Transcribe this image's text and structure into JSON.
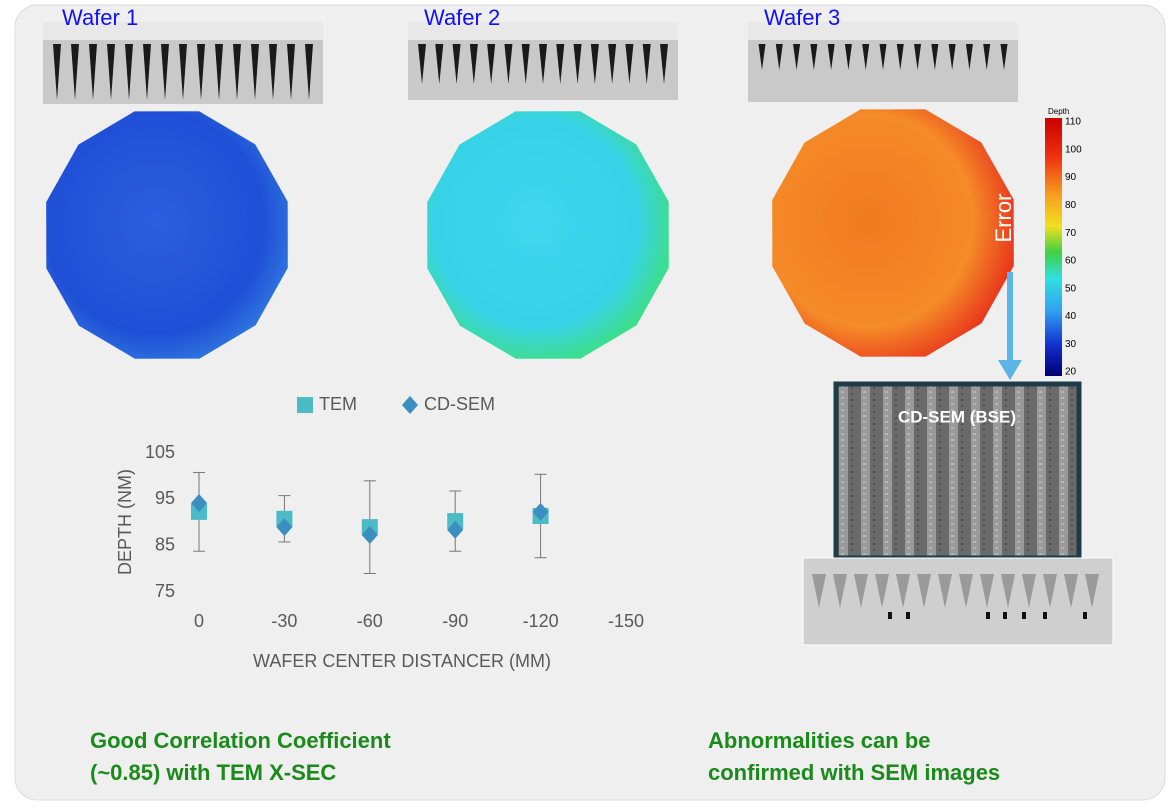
{
  "wafers": [
    "Wafer 1",
    "Wafer 2",
    "Wafer 3"
  ],
  "colorbar": {
    "title": "Depth",
    "ticks": [
      110,
      100,
      90,
      80,
      70,
      60,
      50,
      40,
      30,
      20
    ]
  },
  "error_label": "Error",
  "sem_label": "CD-SEM (BSE)",
  "captions": {
    "left": [
      "Good Correlation Coefficient",
      "(~0.85) with TEM X-SEC"
    ],
    "right": [
      "Abnormalities can be",
      "confirmed with SEM images"
    ]
  },
  "chart_data": {
    "type": "scatter",
    "x_label": "WAFER CENTER DISTANCER (MM)",
    "y_label": "DEPTH (NM)",
    "x": [
      0,
      -30,
      -60,
      -90,
      -120
    ],
    "series": [
      {
        "name": "TEM",
        "color": "#4bbcc6",
        "marker": "square",
        "values": [
          92.3,
          90.8,
          89.0,
          90.3,
          91.4
        ],
        "errors": [
          8.5,
          5,
          10,
          6.5,
          9
        ]
      },
      {
        "name": "CD-SEM",
        "color": "#3a8fc0",
        "marker": "diamond",
        "values": [
          94.2,
          89.0,
          87.3,
          88.4,
          92.3
        ]
      }
    ],
    "xlim": [
      0,
      -150
    ],
    "xticks": [
      0,
      -30,
      -60,
      -90,
      -120,
      -150
    ],
    "ylim": [
      75,
      105
    ],
    "yticks": [
      75,
      85,
      95,
      105
    ],
    "legend": "top"
  }
}
